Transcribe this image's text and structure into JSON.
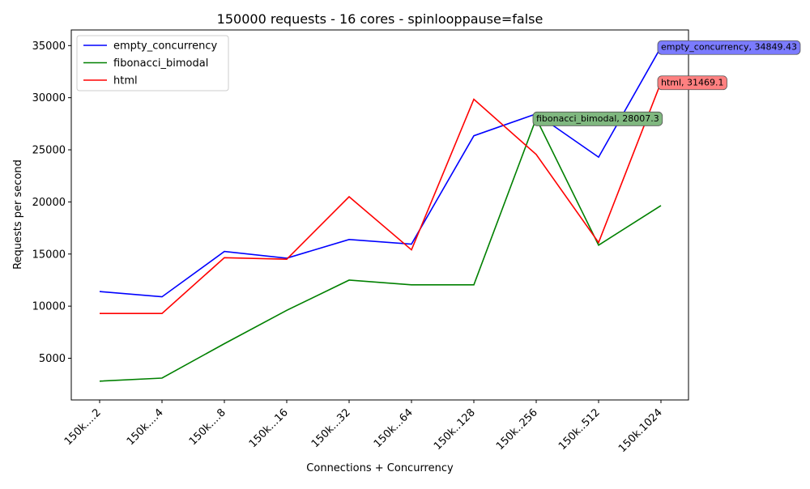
{
  "chart_data": {
    "type": "line",
    "title": "150000 requests - 16 cores - spinlooppause=false",
    "xlabel": "Connections + Concurrency",
    "ylabel": "Requests per second",
    "categories": [
      "150k....2",
      "150k....4",
      "150k....8",
      "150k...16",
      "150k...32",
      "150k...64",
      "150k..128",
      "150k..256",
      "150k..512",
      "150k.1024"
    ],
    "ylim": [
      1000,
      36500
    ],
    "yticks": [
      5000,
      10000,
      15000,
      20000,
      25000,
      30000,
      35000
    ],
    "grid": false,
    "legend_position": "top-left",
    "series": [
      {
        "name": "empty_concurrency",
        "color": "#0000ff",
        "values": [
          11400,
          10900,
          15250,
          14600,
          16400,
          15950,
          26350,
          28450,
          24300,
          34849.43
        ]
      },
      {
        "name": "fibonacci_bimodal",
        "color": "#008000",
        "values": [
          2800,
          3100,
          6400,
          9600,
          12500,
          12050,
          12050,
          28007.3,
          15850,
          19650
        ]
      },
      {
        "name": "html",
        "color": "#ff0000",
        "values": [
          9300,
          9300,
          14650,
          14500,
          20500,
          15400,
          29850,
          24550,
          16100,
          31469.1
        ]
      }
    ],
    "annotations": [
      {
        "series": 0,
        "index": 9,
        "text": "empty_concurrency, 34849.43",
        "color": "#7b7bff"
      },
      {
        "series": 1,
        "index": 7,
        "text": "fibonacci_bimodal, 28007.3",
        "color": "#80b880"
      },
      {
        "series": 2,
        "index": 9,
        "text": "html, 31469.1",
        "color": "#ff8080"
      }
    ]
  }
}
